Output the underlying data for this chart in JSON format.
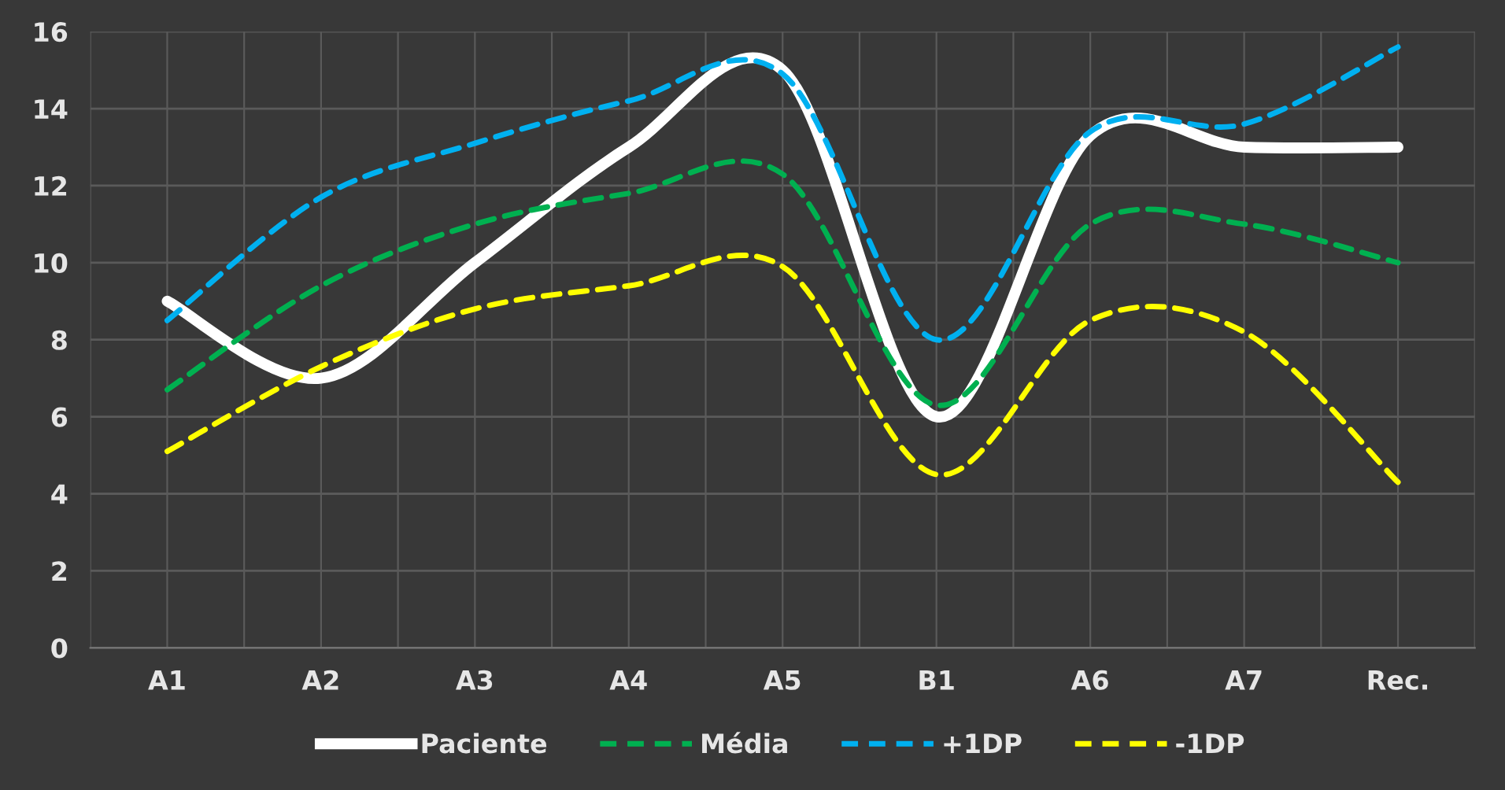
{
  "chart_data": {
    "type": "line",
    "categories": [
      "A1",
      "A2",
      "A3",
      "A4",
      "A5",
      "B1",
      "A6",
      "A7",
      "Rec."
    ],
    "series": [
      {
        "name": "Paciente",
        "color": "#ffffff",
        "line_style": "solid",
        "values": [
          9,
          7,
          10,
          13,
          15,
          6,
          13.3,
          13,
          13
        ]
      },
      {
        "name": "Média",
        "color": "#00b050",
        "line_style": "dashed",
        "values": [
          6.7,
          9.4,
          11,
          11.8,
          12.3,
          6.3,
          11,
          11,
          10
        ]
      },
      {
        "name": "+1DP",
        "color": "#00b0f0",
        "line_style": "dashed",
        "values": [
          8.5,
          11.7,
          13.1,
          14.2,
          14.9,
          8,
          13.4,
          13.6,
          15.6
        ]
      },
      {
        "name": "-1DP",
        "color": "#ffff00",
        "line_style": "dashed",
        "values": [
          5.1,
          7.3,
          8.8,
          9.4,
          9.9,
          4.5,
          8.5,
          8.2,
          4.3
        ]
      }
    ],
    "ylim": [
      0,
      16
    ],
    "yticks": [
      0,
      2,
      4,
      6,
      8,
      10,
      12,
      14,
      16
    ],
    "grid": true,
    "legend": "bottom",
    "marker": "none"
  }
}
